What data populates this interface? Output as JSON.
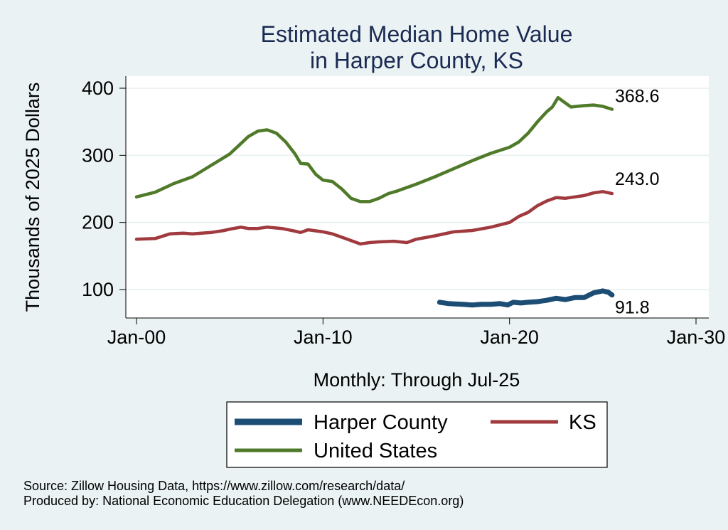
{
  "chart_data": {
    "type": "line",
    "title": [
      "Estimated Median Home Value",
      "in Harper County, KS"
    ],
    "xlabel": "Monthly: Through Jul-25",
    "ylabel": "Thousands of 2025 Dollars",
    "x_ticks": [
      "Jan-00",
      "Jan-10",
      "Jan-20",
      "Jan-30"
    ],
    "y_ticks": [
      100,
      200,
      300,
      400
    ],
    "xlim": [
      2000,
      2030
    ],
    "ylim": [
      60,
      415
    ],
    "grid": true,
    "legend_position": "bottom",
    "series": [
      {
        "name": "Harper County",
        "color": "#1b4d75",
        "end_label": "91.8",
        "points": [
          [
            2016.25,
            81
          ],
          [
            2016.75,
            79
          ],
          [
            2017.5,
            78
          ],
          [
            2018.0,
            77
          ],
          [
            2018.5,
            78
          ],
          [
            2019.0,
            78
          ],
          [
            2019.5,
            79
          ],
          [
            2019.9,
            77
          ],
          [
            2020.2,
            81
          ],
          [
            2020.6,
            80
          ],
          [
            2021.0,
            81
          ],
          [
            2021.5,
            82
          ],
          [
            2022.0,
            84
          ],
          [
            2022.5,
            87
          ],
          [
            2023.0,
            85
          ],
          [
            2023.5,
            88
          ],
          [
            2024.0,
            88
          ],
          [
            2024.5,
            95
          ],
          [
            2025.0,
            98
          ],
          [
            2025.3,
            96
          ],
          [
            2025.5,
            91.8
          ]
        ]
      },
      {
        "name": "KS",
        "color": "#a03a3e",
        "end_label": "243.0",
        "points": [
          [
            2000.0,
            175
          ],
          [
            2001.0,
            176
          ],
          [
            2001.8,
            183
          ],
          [
            2002.5,
            184
          ],
          [
            2003.0,
            183
          ],
          [
            2004.0,
            185
          ],
          [
            2004.7,
            188
          ],
          [
            2005.0,
            190
          ],
          [
            2005.6,
            193
          ],
          [
            2006.0,
            191
          ],
          [
            2006.5,
            191
          ],
          [
            2007.0,
            193
          ],
          [
            2007.8,
            191
          ],
          [
            2008.5,
            187
          ],
          [
            2008.8,
            185
          ],
          [
            2009.2,
            189
          ],
          [
            2010.0,
            186
          ],
          [
            2010.5,
            183
          ],
          [
            2011.2,
            176
          ],
          [
            2012.0,
            168
          ],
          [
            2012.5,
            170
          ],
          [
            2013.0,
            171
          ],
          [
            2013.8,
            172
          ],
          [
            2014.5,
            170
          ],
          [
            2015.0,
            175
          ],
          [
            2016.0,
            180
          ],
          [
            2017.0,
            186
          ],
          [
            2018.0,
            188
          ],
          [
            2019.0,
            193
          ],
          [
            2020.0,
            200
          ],
          [
            2020.5,
            209
          ],
          [
            2021.0,
            215
          ],
          [
            2021.5,
            225
          ],
          [
            2022.0,
            232
          ],
          [
            2022.5,
            237
          ],
          [
            2023.0,
            236
          ],
          [
            2023.5,
            238
          ],
          [
            2024.0,
            240
          ],
          [
            2024.5,
            244
          ],
          [
            2025.0,
            246
          ],
          [
            2025.5,
            243.0
          ]
        ]
      },
      {
        "name": "United States",
        "color": "#4f7a29",
        "end_label": "368.6",
        "points": [
          [
            2000.0,
            238
          ],
          [
            2001.0,
            245
          ],
          [
            2002.0,
            258
          ],
          [
            2003.0,
            268
          ],
          [
            2004.0,
            285
          ],
          [
            2005.0,
            302
          ],
          [
            2005.5,
            315
          ],
          [
            2006.0,
            328
          ],
          [
            2006.5,
            336
          ],
          [
            2007.0,
            338
          ],
          [
            2007.5,
            333
          ],
          [
            2008.0,
            320
          ],
          [
            2008.5,
            302
          ],
          [
            2008.8,
            288
          ],
          [
            2009.2,
            287
          ],
          [
            2009.6,
            272
          ],
          [
            2010.0,
            263
          ],
          [
            2010.5,
            261
          ],
          [
            2011.0,
            250
          ],
          [
            2011.5,
            236
          ],
          [
            2012.0,
            231
          ],
          [
            2012.5,
            231
          ],
          [
            2013.0,
            236
          ],
          [
            2013.5,
            243
          ],
          [
            2014.0,
            247
          ],
          [
            2015.0,
            257
          ],
          [
            2016.0,
            268
          ],
          [
            2017.0,
            280
          ],
          [
            2018.0,
            292
          ],
          [
            2019.0,
            303
          ],
          [
            2020.0,
            312
          ],
          [
            2020.5,
            320
          ],
          [
            2021.0,
            333
          ],
          [
            2021.5,
            350
          ],
          [
            2022.0,
            365
          ],
          [
            2022.3,
            372
          ],
          [
            2022.6,
            386
          ],
          [
            2022.9,
            380
          ],
          [
            2023.3,
            372
          ],
          [
            2024.0,
            374
          ],
          [
            2024.5,
            375
          ],
          [
            2025.0,
            373
          ],
          [
            2025.5,
            368.6
          ]
        ]
      }
    ],
    "legend_order": [
      "Harper County",
      "KS",
      "United States"
    ]
  },
  "footer": {
    "source": "Source: Zillow Housing Data, https://www.zillow.com/research/data/",
    "produced": "Produced by: National Economic Education Delegation (www.NEEDEcon.org)"
  }
}
